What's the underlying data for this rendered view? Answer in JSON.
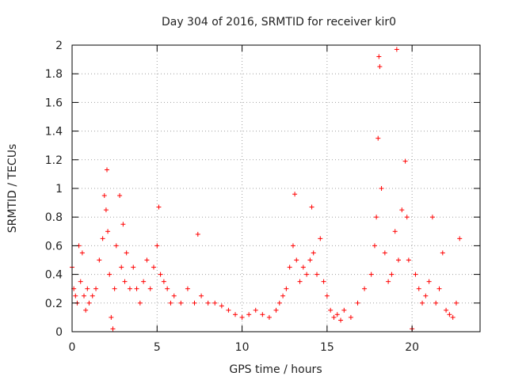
{
  "chart_data": {
    "type": "scatter",
    "title": "Day 304 of 2016, SRMTID for receiver kir0",
    "xlabel": "GPS time / hours",
    "ylabel": "SRMTID / TECUs",
    "xlim": [
      0,
      24
    ],
    "ylim": [
      0,
      2
    ],
    "x_ticks": [
      0,
      5,
      10,
      15,
      20
    ],
    "x_tick_labels": [
      "0",
      "5",
      "10",
      "15",
      "20"
    ],
    "y_ticks": [
      0,
      0.2,
      0.4,
      0.6,
      0.8,
      1,
      1.2,
      1.4,
      1.6,
      1.8,
      2
    ],
    "y_tick_labels": [
      "0",
      "0.2",
      "0.4",
      "0.6",
      "0.8",
      "1",
      "1.2",
      "1.4",
      "1.6",
      "1.8",
      "2"
    ],
    "grid": true,
    "marker": "+",
    "marker_color": "#ff0000",
    "series": [
      {
        "name": "SRMTID",
        "x": [
          0.0,
          0.1,
          0.2,
          0.3,
          0.4,
          0.5,
          0.6,
          0.7,
          0.8,
          0.9,
          1.0,
          1.2,
          1.4,
          1.6,
          1.8,
          1.9,
          2.0,
          2.05,
          2.1,
          2.2,
          2.3,
          2.4,
          2.5,
          2.6,
          2.8,
          2.9,
          3.0,
          3.1,
          3.2,
          3.4,
          3.6,
          3.8,
          4.0,
          4.2,
          4.4,
          4.6,
          4.8,
          5.0,
          5.1,
          5.2,
          5.4,
          5.6,
          5.8,
          6.0,
          6.4,
          6.8,
          7.2,
          7.4,
          7.6,
          8.0,
          8.4,
          8.8,
          9.2,
          9.6,
          10.0,
          10.4,
          10.8,
          11.2,
          11.6,
          12.0,
          12.2,
          12.4,
          12.6,
          12.8,
          13.0,
          13.1,
          13.2,
          13.4,
          13.6,
          13.8,
          14.0,
          14.1,
          14.2,
          14.4,
          14.6,
          14.8,
          15.0,
          15.2,
          15.4,
          15.6,
          15.8,
          16.0,
          16.4,
          16.8,
          17.2,
          17.6,
          17.8,
          17.9,
          18.0,
          18.05,
          18.1,
          18.2,
          18.4,
          18.6,
          18.8,
          19.0,
          19.1,
          19.2,
          19.4,
          19.6,
          19.7,
          19.8,
          20.0,
          20.2,
          20.4,
          20.6,
          20.8,
          21.0,
          21.2,
          21.4,
          21.6,
          21.8,
          22.0,
          22.2,
          22.4,
          22.6,
          22.8
        ],
        "y": [
          0.45,
          0.3,
          0.25,
          0.2,
          0.6,
          0.35,
          0.55,
          0.25,
          0.15,
          0.3,
          0.2,
          0.25,
          0.3,
          0.5,
          0.65,
          0.95,
          0.85,
          1.13,
          0.7,
          0.4,
          0.1,
          0.02,
          0.3,
          0.6,
          0.95,
          0.45,
          0.75,
          0.35,
          0.55,
          0.3,
          0.45,
          0.3,
          0.2,
          0.35,
          0.5,
          0.3,
          0.45,
          0.6,
          0.87,
          0.4,
          0.35,
          0.3,
          0.2,
          0.25,
          0.2,
          0.3,
          0.2,
          0.68,
          0.25,
          0.2,
          0.2,
          0.18,
          0.15,
          0.12,
          0.1,
          0.12,
          0.15,
          0.12,
          0.1,
          0.15,
          0.2,
          0.25,
          0.3,
          0.45,
          0.6,
          0.96,
          0.5,
          0.35,
          0.45,
          0.4,
          0.5,
          0.87,
          0.55,
          0.4,
          0.65,
          0.35,
          0.25,
          0.15,
          0.1,
          0.12,
          0.08,
          0.15,
          0.1,
          0.2,
          0.3,
          0.4,
          0.6,
          0.8,
          1.35,
          1.92,
          1.85,
          1.0,
          0.55,
          0.35,
          0.4,
          0.7,
          1.97,
          0.5,
          0.85,
          1.19,
          0.8,
          0.5,
          0.02,
          0.4,
          0.3,
          0.2,
          0.25,
          0.35,
          0.8,
          0.2,
          0.3,
          0.55,
          0.15,
          0.12,
          0.1,
          0.2,
          0.65
        ]
      }
    ]
  }
}
